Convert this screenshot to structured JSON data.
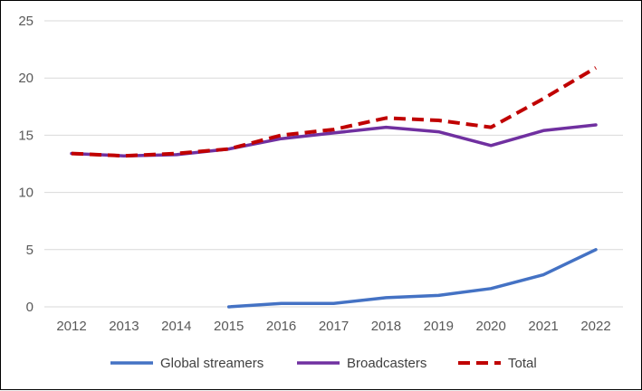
{
  "chart_data": {
    "type": "line",
    "title": "",
    "xlabel": "",
    "ylabel": "",
    "x": [
      "2012",
      "2013",
      "2014",
      "2015",
      "2016",
      "2017",
      "2018",
      "2019",
      "2020",
      "2021",
      "2022"
    ],
    "ylim": [
      0,
      25
    ],
    "yticks": [
      0,
      5,
      10,
      15,
      20,
      25
    ],
    "grid": "horizontal",
    "legend_position": "bottom",
    "series": [
      {
        "name": "Global streamers",
        "color": "#4472C4",
        "style": "solid",
        "values": [
          null,
          null,
          null,
          0.0,
          0.3,
          0.3,
          0.8,
          1.0,
          1.6,
          2.8,
          5.0
        ]
      },
      {
        "name": "Broadcasters",
        "color": "#7030A0",
        "style": "solid",
        "values": [
          13.4,
          13.2,
          13.3,
          13.8,
          14.7,
          15.2,
          15.7,
          15.3,
          14.1,
          15.4,
          15.9
        ]
      },
      {
        "name": "Total",
        "color": "#C00000",
        "style": "dashed",
        "values": [
          13.4,
          13.2,
          13.4,
          13.8,
          15.0,
          15.5,
          16.5,
          16.3,
          15.7,
          18.2,
          20.9
        ]
      }
    ]
  }
}
